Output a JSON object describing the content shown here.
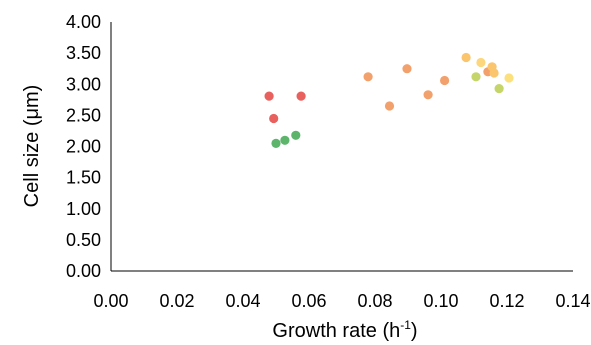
{
  "chart_data": {
    "type": "scatter",
    "title": "",
    "xlabel": "Growth  rate  (h",
    "xlabel_sup": "-1",
    "xlabel_suffix": ")",
    "ylabel": "Cell size  (μm)",
    "xlim": [
      0,
      0.14
    ],
    "ylim": [
      0,
      4
    ],
    "x_ticks": [
      "0.00",
      "0.02",
      "0.04",
      "0.06",
      "0.08",
      "0.10",
      "0.12",
      "0.14"
    ],
    "y_ticks": [
      "0.00",
      "0.50",
      "1.00",
      "1.50",
      "2.00",
      "2.50",
      "3.00",
      "3.50",
      "4.00"
    ],
    "grid": false,
    "legend": "none",
    "points": [
      {
        "x": 0.0479,
        "y": 2.81,
        "color": "#e8615e"
      },
      {
        "x": 0.0576,
        "y": 2.81,
        "color": "#e8615e"
      },
      {
        "x": 0.0493,
        "y": 2.45,
        "color": "#e8615e"
      },
      {
        "x": 0.05,
        "y": 2.05,
        "color": "#5cb56b"
      },
      {
        "x": 0.0527,
        "y": 2.1,
        "color": "#5cb56b"
      },
      {
        "x": 0.056,
        "y": 2.18,
        "color": "#5cb56b"
      },
      {
        "x": 0.0779,
        "y": 3.12,
        "color": "#f2a06c"
      },
      {
        "x": 0.0844,
        "y": 2.65,
        "color": "#f2a06c"
      },
      {
        "x": 0.0897,
        "y": 3.25,
        "color": "#f2a06c"
      },
      {
        "x": 0.0961,
        "y": 2.83,
        "color": "#f2a06c"
      },
      {
        "x": 0.1011,
        "y": 3.06,
        "color": "#f2a06c"
      },
      {
        "x": 0.1076,
        "y": 3.43,
        "color": "#fbc56d"
      },
      {
        "x": 0.1121,
        "y": 3.35,
        "color": "#fdd77d"
      },
      {
        "x": 0.1142,
        "y": 3.2,
        "color": "#f2a06c"
      },
      {
        "x": 0.1155,
        "y": 3.28,
        "color": "#fbc56d"
      },
      {
        "x": 0.1161,
        "y": 3.18,
        "color": "#fbc56d"
      },
      {
        "x": 0.1106,
        "y": 3.12,
        "color": "#c6d56a"
      },
      {
        "x": 0.1176,
        "y": 2.93,
        "color": "#c6d56a"
      },
      {
        "x": 0.1206,
        "y": 3.1,
        "color": "#fde07e"
      }
    ]
  }
}
